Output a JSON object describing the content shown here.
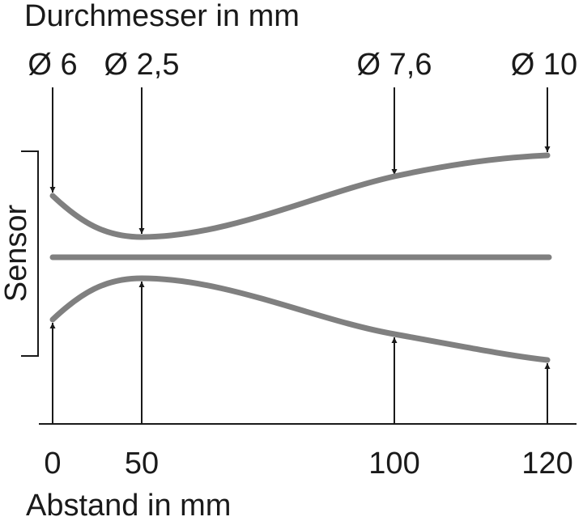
{
  "header": {
    "title": "Durchmesser in mm"
  },
  "diameters": [
    "Ø 6",
    "Ø 2,5",
    "Ø 7,6",
    "Ø 10"
  ],
  "sensor": "Sensor",
  "distances": [
    "0",
    "50",
    "100",
    "120"
  ],
  "footer": {
    "axis_label": "Abstand in mm"
  }
}
